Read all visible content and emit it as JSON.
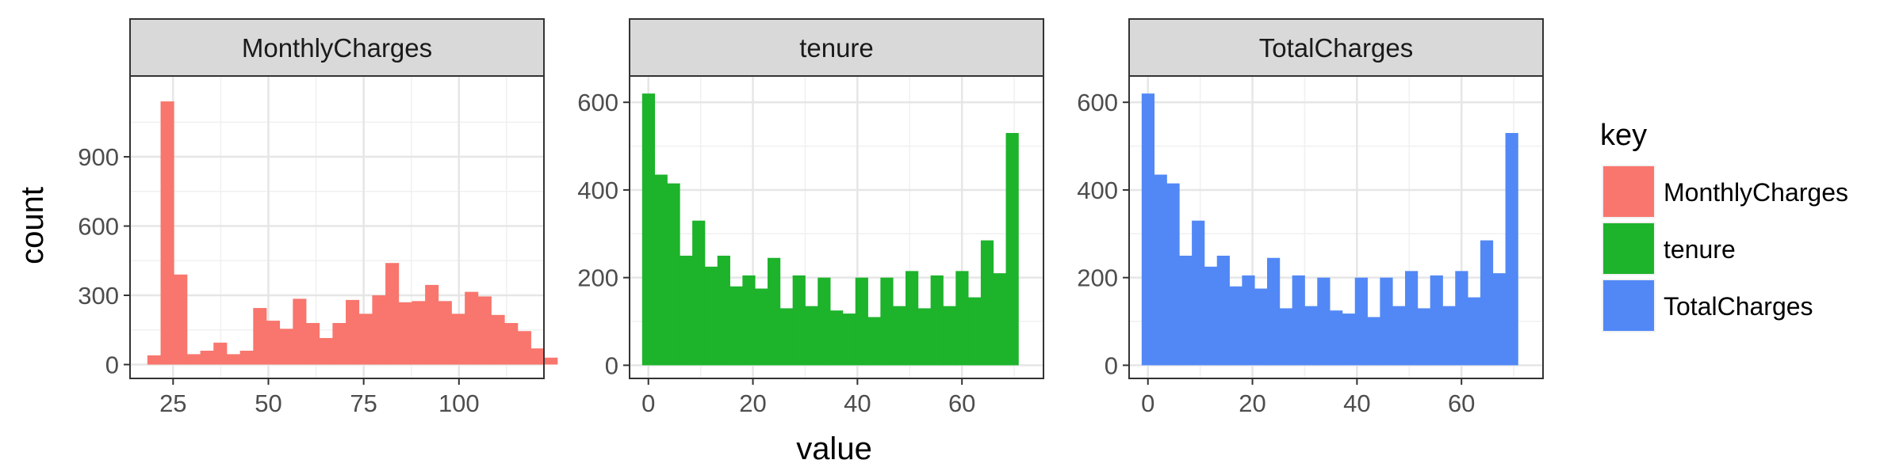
{
  "chart_data": {
    "type": "bar",
    "subtype": "faceted-histogram",
    "xlabel": "value",
    "ylabel": "count",
    "legend": {
      "title": "key",
      "placement": "right",
      "items": [
        {
          "label": "MonthlyCharges",
          "color": "#F8766D"
        },
        {
          "label": "tenure",
          "color": "#1DB32B"
        },
        {
          "label": "TotalCharges",
          "color": "#5288F6"
        }
      ]
    },
    "grid": true,
    "facets": [
      {
        "title": "MonthlyCharges",
        "color": "#F8766D",
        "xlim": [
          13.7,
          122.3
        ],
        "ylim": [
          -60,
          1250
        ],
        "xticks": [
          25,
          50,
          75,
          100
        ],
        "yticks": [
          0,
          300,
          600,
          900
        ],
        "bin_start": 18.25,
        "bin_width": 3.47,
        "counts": [
          40,
          1140,
          390,
          45,
          60,
          95,
          45,
          60,
          245,
          190,
          155,
          285,
          180,
          115,
          180,
          280,
          220,
          300,
          440,
          270,
          275,
          345,
          275,
          220,
          315,
          295,
          215,
          180,
          145,
          70,
          30
        ]
      },
      {
        "title": "tenure",
        "color": "#1DB32B",
        "xlim": [
          -3.6,
          75.6
        ],
        "ylim": [
          -30,
          660
        ],
        "xticks": [
          0,
          20,
          40,
          60
        ],
        "yticks": [
          0,
          200,
          400,
          600
        ],
        "bin_start": -1.2,
        "bin_width": 2.4,
        "counts": [
          620,
          435,
          415,
          250,
          330,
          225,
          250,
          180,
          205,
          175,
          245,
          130,
          205,
          135,
          200,
          125,
          118,
          200,
          110,
          200,
          135,
          215,
          130,
          205,
          135,
          215,
          155,
          285,
          210,
          530
        ]
      },
      {
        "title": "TotalCharges",
        "color": "#5288F6",
        "xlim": [
          -3.6,
          75.6
        ],
        "ylim": [
          -30,
          660
        ],
        "xticks": [
          0,
          20,
          40,
          60
        ],
        "yticks": [
          0,
          200,
          400,
          600
        ],
        "bin_start": -1.2,
        "bin_width": 2.4,
        "counts": [
          620,
          435,
          415,
          250,
          330,
          225,
          250,
          180,
          205,
          175,
          245,
          130,
          205,
          135,
          200,
          125,
          118,
          200,
          110,
          200,
          135,
          215,
          130,
          205,
          135,
          215,
          155,
          285,
          210,
          530
        ]
      }
    ]
  }
}
